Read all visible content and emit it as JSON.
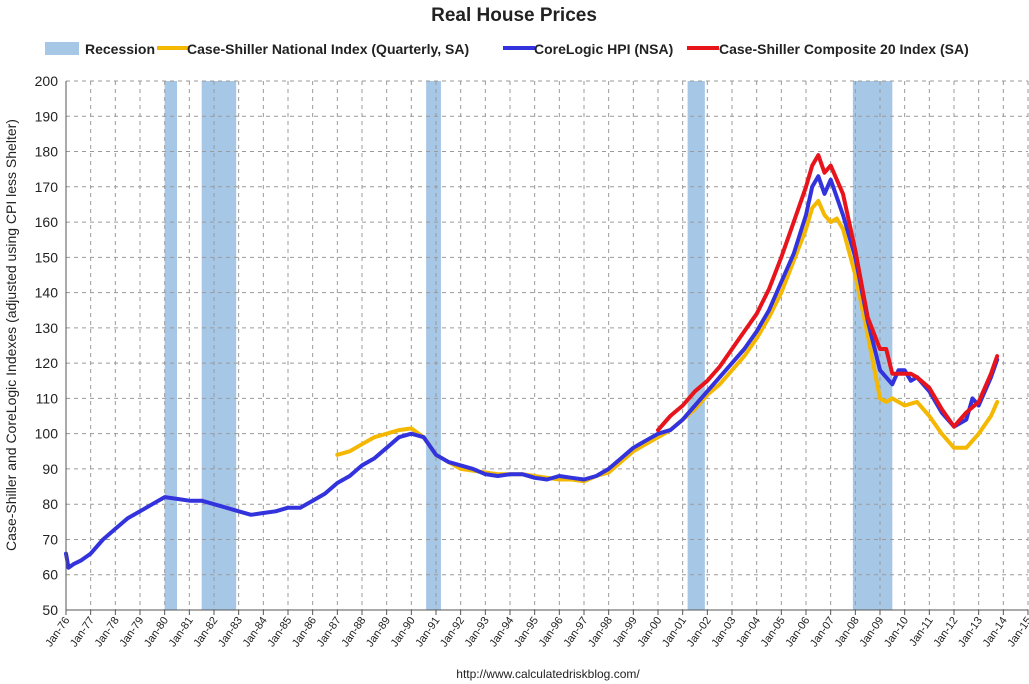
{
  "chart_data": {
    "type": "line",
    "title": "Real House Prices",
    "ylabel": "Case-Shiller and CoreLogic Indexes (adjusted using CPI less Shelter)",
    "xlabel": "",
    "source": "http://www.calculatedriskblog.com/",
    "ylim": [
      50,
      200
    ],
    "yticks": [
      "50",
      "60",
      "70",
      "80",
      "90",
      "100",
      "110",
      "120",
      "130",
      "140",
      "150",
      "160",
      "170",
      "180",
      "190",
      "200"
    ],
    "xlim": [
      1976,
      2015
    ],
    "xticks": [
      "Jan-76",
      "Jan-77",
      "Jan-78",
      "Jan-79",
      "Jan-80",
      "Jan-81",
      "Jan-82",
      "Jan-83",
      "Jan-84",
      "Jan-85",
      "Jan-86",
      "Jan-87",
      "Jan-88",
      "Jan-89",
      "Jan-90",
      "Jan-91",
      "Jan-92",
      "Jan-93",
      "Jan-94",
      "Jan-95",
      "Jan-96",
      "Jan-97",
      "Jan-98",
      "Jan-99",
      "Jan-00",
      "Jan-01",
      "Jan-02",
      "Jan-03",
      "Jan-04",
      "Jan-05",
      "Jan-06",
      "Jan-07",
      "Jan-08",
      "Jan-09",
      "Jan-10",
      "Jan-11",
      "Jan-12",
      "Jan-13",
      "Jan-14",
      "Jan-15"
    ],
    "grid": true,
    "legend_position": "top",
    "recessions": [
      [
        1980.0,
        1980.5
      ],
      [
        1981.5,
        1982.9
      ],
      [
        1990.6,
        1991.2
      ],
      [
        2001.2,
        2001.9
      ],
      [
        2007.9,
        2009.5
      ]
    ],
    "legend": {
      "recession": {
        "label": "Recession",
        "color": "#a7c7e7"
      }
    },
    "series": [
      {
        "name": "Case-Shiller National Index (Quarterly, SA)",
        "color": "#f5b800",
        "x": [
          1987.0,
          1987.5,
          1988.0,
          1988.5,
          1989.0,
          1989.5,
          1990.0,
          1990.5,
          1991.0,
          1991.5,
          1992.0,
          1992.5,
          1993.0,
          1993.5,
          1994.0,
          1994.5,
          1995.0,
          1995.5,
          1996.0,
          1996.5,
          1997.0,
          1997.5,
          1998.0,
          1998.5,
          1999.0,
          1999.5,
          2000.0,
          2000.5,
          2001.0,
          2001.5,
          2002.0,
          2002.5,
          2003.0,
          2003.5,
          2004.0,
          2004.5,
          2005.0,
          2005.5,
          2006.0,
          2006.25,
          2006.5,
          2006.75,
          2007.0,
          2007.25,
          2007.5,
          2008.0,
          2008.5,
          2009.0,
          2009.25,
          2009.5,
          2010.0,
          2010.5,
          2011.0,
          2011.5,
          2012.0,
          2012.5,
          2013.0,
          2013.5,
          2013.75
        ],
        "values": [
          94,
          95,
          97,
          99,
          100,
          101,
          101.5,
          99,
          94,
          92,
          90,
          89.5,
          89,
          88.5,
          88.5,
          88.5,
          88,
          87.5,
          87,
          87,
          86.5,
          88,
          89,
          92,
          95,
          97,
          99,
          101,
          104,
          107,
          111,
          114,
          118,
          122,
          127,
          133,
          140,
          149,
          158,
          164,
          166,
          162,
          160,
          161,
          158,
          145,
          128,
          110,
          109,
          110,
          108,
          109,
          105,
          100,
          96,
          96,
          100,
          105,
          109
        ]
      },
      {
        "name": "CoreLogic HPI (NSA)",
        "color": "#3333dd",
        "x": [
          1976.0,
          1976.1,
          1976.3,
          1976.6,
          1977.0,
          1977.5,
          1978.0,
          1978.5,
          1979.0,
          1979.5,
          1980.0,
          1980.5,
          1981.0,
          1981.5,
          1982.0,
          1982.5,
          1983.0,
          1983.5,
          1984.0,
          1984.5,
          1985.0,
          1985.5,
          1986.0,
          1986.5,
          1987.0,
          1987.5,
          1988.0,
          1988.5,
          1989.0,
          1989.5,
          1990.0,
          1990.5,
          1991.0,
          1991.5,
          1992.0,
          1992.5,
          1993.0,
          1993.5,
          1994.0,
          1994.5,
          1995.0,
          1995.5,
          1996.0,
          1996.5,
          1997.0,
          1997.5,
          1998.0,
          1998.5,
          1999.0,
          1999.5,
          2000.0,
          2000.5,
          2001.0,
          2001.5,
          2002.0,
          2002.5,
          2003.0,
          2003.5,
          2004.0,
          2004.5,
          2005.0,
          2005.5,
          2006.0,
          2006.25,
          2006.5,
          2006.75,
          2007.0,
          2007.5,
          2008.0,
          2008.5,
          2009.0,
          2009.5,
          2009.75,
          2010.0,
          2010.25,
          2010.5,
          2011.0,
          2011.5,
          2012.0,
          2012.5,
          2012.75,
          2013.0,
          2013.5,
          2013.75
        ],
        "values": [
          66,
          62,
          63,
          64,
          66,
          70,
          73,
          76,
          78,
          80,
          82,
          81.5,
          81,
          81,
          80,
          79,
          78,
          77,
          77.5,
          78,
          79,
          79,
          81,
          83,
          86,
          88,
          91,
          93,
          96,
          99,
          100,
          99,
          94,
          92,
          91,
          90,
          88.5,
          88,
          88.5,
          88.5,
          87.5,
          87,
          88,
          87.5,
          87,
          88,
          90,
          93,
          96,
          98,
          100,
          101,
          104,
          108,
          112,
          116,
          120,
          124,
          129,
          135,
          143,
          151,
          162,
          170,
          173,
          168,
          172,
          162,
          150,
          132,
          118,
          114,
          118,
          118,
          115,
          116,
          112,
          106,
          102,
          104,
          110,
          108,
          116,
          121
        ]
      },
      {
        "name": "Case-Shiller Composite 20 Index (SA)",
        "color": "#e8141b",
        "x": [
          2000.0,
          2000.5,
          2001.0,
          2001.5,
          2002.0,
          2002.5,
          2003.0,
          2003.5,
          2004.0,
          2004.5,
          2005.0,
          2005.5,
          2006.0,
          2006.25,
          2006.5,
          2006.75,
          2007.0,
          2007.5,
          2008.0,
          2008.5,
          2009.0,
          2009.25,
          2009.5,
          2010.0,
          2010.25,
          2010.5,
          2011.0,
          2011.5,
          2012.0,
          2012.5,
          2013.0,
          2013.5,
          2013.75
        ],
        "values": [
          101,
          105,
          108,
          112,
          115,
          119,
          124,
          129,
          134,
          141,
          150,
          160,
          170,
          176,
          179,
          174,
          176,
          168,
          152,
          133,
          124,
          124,
          117,
          117,
          117,
          116,
          113,
          107,
          102,
          106,
          109,
          117,
          122
        ]
      }
    ]
  }
}
